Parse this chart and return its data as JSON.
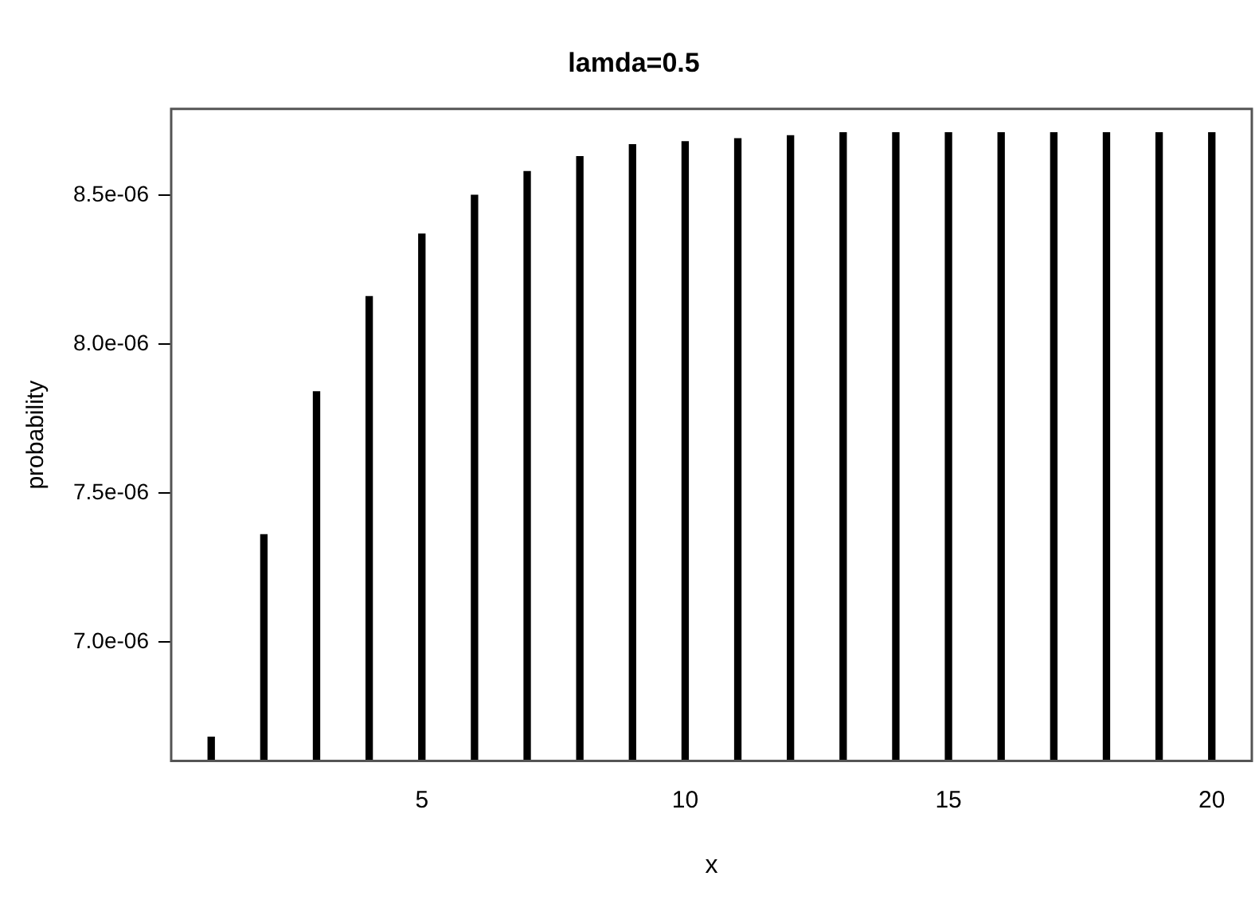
{
  "chart_data": {
    "type": "bar",
    "title": "lamda=0.5",
    "xlabel": "x",
    "ylabel": "probability",
    "x": [
      1,
      2,
      3,
      4,
      5,
      6,
      7,
      8,
      9,
      10,
      11,
      12,
      13,
      14,
      15,
      16,
      17,
      18,
      19,
      20
    ],
    "values": [
      6.68e-06,
      7.36e-06,
      7.84e-06,
      8.16e-06,
      8.37e-06,
      8.5e-06,
      8.58e-06,
      8.63e-06,
      8.67e-06,
      8.68e-06,
      8.69e-06,
      8.7e-06,
      8.71e-06,
      8.71e-06,
      8.71e-06,
      8.71e-06,
      8.71e-06,
      8.71e-06,
      8.71e-06,
      8.71e-06
    ],
    "color": "#000000",
    "xlim": [
      0.24,
      20.76
    ],
    "xticks": [
      5,
      10,
      15,
      20
    ],
    "ylim": [
      6.6e-06,
      8.79e-06
    ],
    "yticks": [
      {
        "value": 7e-06,
        "label": "7.0e-06"
      },
      {
        "value": 7.5e-06,
        "label": "7.5e-06"
      },
      {
        "value": 8e-06,
        "label": "8.0e-06"
      },
      {
        "value": 8.5e-06,
        "label": "8.5e-06"
      }
    ],
    "grid": false,
    "legend": false
  }
}
